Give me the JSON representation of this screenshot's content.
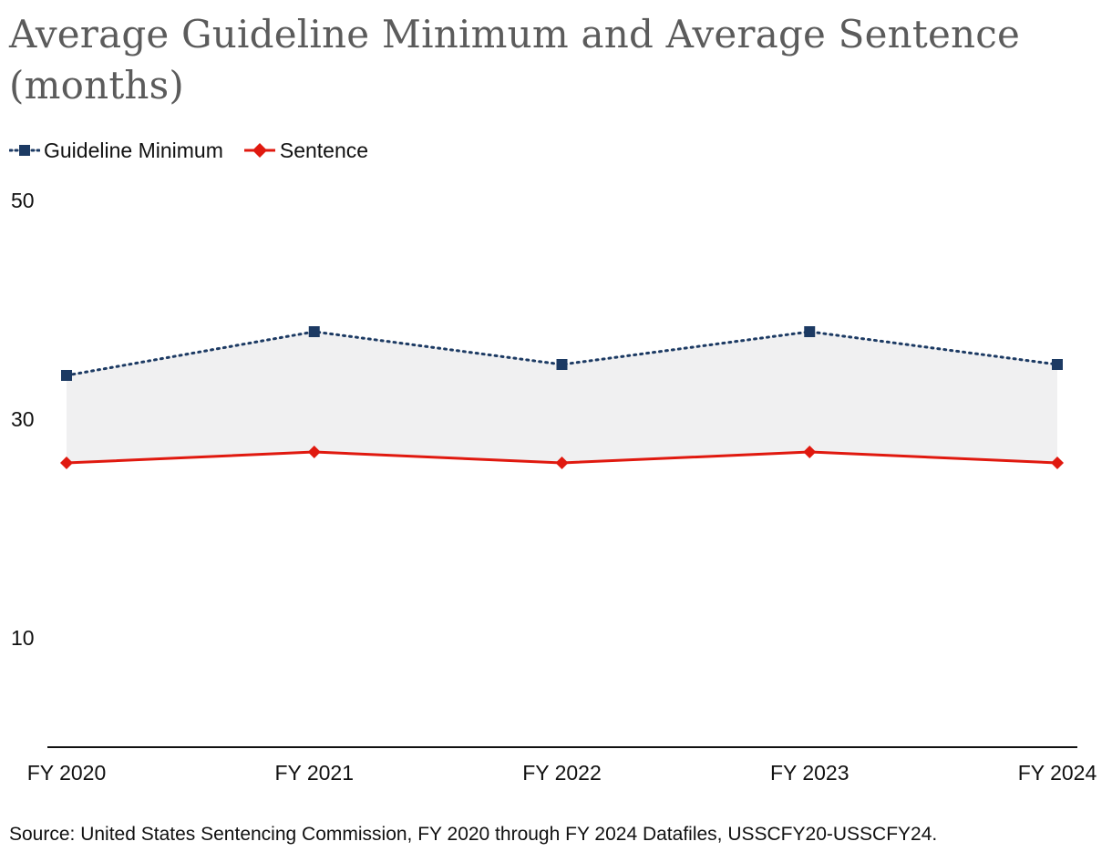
{
  "chart_data": {
    "type": "line",
    "title": "Average Guideline Minimum and Average Sentence (months)",
    "categories": [
      "FY 2020",
      "FY 2021",
      "FY 2022",
      "FY 2023",
      "FY 2024"
    ],
    "series": [
      {
        "name": "Guideline Minimum",
        "values": [
          34,
          38,
          35,
          38,
          35
        ],
        "color": "#1c3a63",
        "line_style": "dotted",
        "marker": "square"
      },
      {
        "name": "Sentence",
        "values": [
          26,
          27,
          26,
          27,
          26
        ],
        "color": "#e0190f",
        "line_style": "solid",
        "marker": "diamond"
      }
    ],
    "shaded_between_series": true,
    "shade_color": "#f0f0f1",
    "yticks": [
      "50",
      "30",
      "10"
    ],
    "ylim": [
      0,
      50
    ],
    "legend_position": "top-left",
    "grid": false,
    "source": "Source: United States Sentencing Commission, FY 2020 through FY 2024 Datafiles, USSCFY20-USSCFY24."
  }
}
